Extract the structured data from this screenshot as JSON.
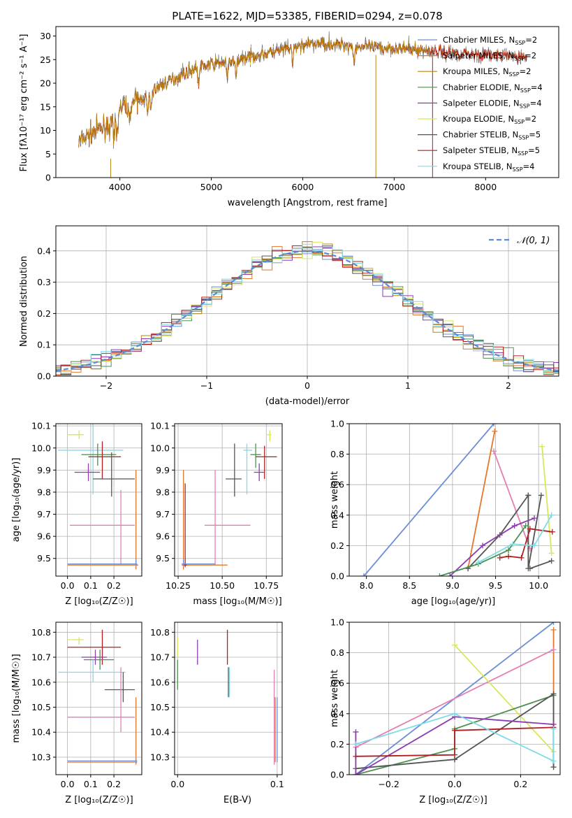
{
  "colors": {
    "chabrier_miles": "#6a8fd8",
    "salpeter_miles": "#e5772b",
    "kroupa_miles": "#b8860b",
    "chabrier_elodie": "#4e8f52",
    "salpeter_elodie": "#8e3ab0",
    "kroupa_elodie": "#d9e65a",
    "chabrier_stelib": "#555555",
    "salpeter_stelib": "#b02020",
    "kroupa_stelib": "#7fdbe6",
    "pink": "#e37fb5",
    "normal_line": "#5b8bd5"
  },
  "chart_data": [
    {
      "id": "spectrum",
      "type": "line",
      "title": "PLATE=1622, MJD=53385, FIBERID=0294, z=0.078",
      "xlabel": "wavelength [Angstrom, rest frame]",
      "ylabel": "Flux [fλ10⁻¹⁷ erg cm⁻² s⁻¹ A⁻¹]",
      "xlim": [
        3300,
        8800
      ],
      "ylim": [
        0,
        32
      ],
      "xticks": [
        "4000",
        "5000",
        "6000",
        "7000",
        "8000"
      ],
      "yticks": [
        "0",
        "5",
        "10",
        "15",
        "20",
        "25",
        "30"
      ],
      "grid": false,
      "legend_position": "right",
      "x_range": [
        3550,
        8450
      ],
      "continuum": {
        "x": [
          3550,
          3700,
          3800,
          3950,
          4000,
          4100,
          4200,
          4300,
          4400,
          4500,
          4600,
          4700,
          4800,
          4900,
          5000,
          5200,
          5500,
          5800,
          6000,
          6200,
          6500,
          6800,
          7000,
          7200,
          7400,
          7600,
          7800,
          8000,
          8200,
          8450
        ],
        "y": [
          7.5,
          9.5,
          10.5,
          11.5,
          14.5,
          15.5,
          16.5,
          17,
          19,
          20,
          21,
          22,
          23,
          23.5,
          24,
          24.5,
          26,
          27,
          28,
          28.5,
          28,
          27.5,
          27.5,
          27.2,
          26.8,
          26.5,
          26.3,
          26,
          25.8,
          25.5
        ]
      },
      "series": [
        {
          "name": "Chabrier MILES, N_SSP=2",
          "color_key": "chabrier_miles"
        },
        {
          "name": "Salpeter MILES, N_SSP=2",
          "color_key": "salpeter_miles"
        },
        {
          "name": "Kroupa MILES, N_SSP=2",
          "color_key": "kroupa_miles"
        },
        {
          "name": "Chabrier ELODIE, N_SSP=4",
          "color_key": "chabrier_elodie"
        },
        {
          "name": "Salpeter ELODIE, N_SSP=4",
          "color_key": "salpeter_elodie"
        },
        {
          "name": "Kroupa ELODIE, N_SSP=2",
          "color_key": "kroupa_elodie"
        },
        {
          "name": "Chabrier STELIB, N_SSP=5",
          "color_key": "chabrier_stelib"
        },
        {
          "name": "Salpeter STELIB, N_SSP=5",
          "color_key": "salpeter_stelib"
        },
        {
          "name": "Kroupa STELIB, N_SSP=4",
          "color_key": "kroupa_stelib"
        }
      ]
    },
    {
      "id": "residuals",
      "type": "histogram",
      "xlabel": "(data-model)/error",
      "ylabel": "Normed distribution",
      "xlim": [
        -2.5,
        2.5
      ],
      "ylim": [
        0,
        0.48
      ],
      "xticks": [
        "−2",
        "−1",
        "0",
        "1",
        "2"
      ],
      "yticks": [
        "0.0",
        "0.1",
        "0.2",
        "0.3",
        "0.4"
      ],
      "grid": true,
      "legend_position": "top-right",
      "legend": "𝒩(0, 1)",
      "bin_width": 0.1
    },
    {
      "id": "age_vs_Z",
      "type": "errorbar",
      "xlabel": "Z [log₁₀(Z/Z☉)]",
      "ylabel": "age  [log₁₀(age/yr)]",
      "xlim": [
        -0.05,
        0.32
      ],
      "ylim": [
        9.42,
        10.11
      ],
      "xticks": [
        "0.0",
        "0.1",
        "0.2"
      ],
      "yticks": [
        "9.5",
        "9.6",
        "9.7",
        "9.8",
        "9.9",
        "10.0",
        "10.1"
      ],
      "grid": true,
      "points": [
        {
          "color_key": "kroupa_elodie",
          "x": 0.05,
          "y": 10.06,
          "xerr": [
            0.05,
            0.02
          ],
          "yerr": [
            0.02,
            0.02
          ]
        },
        {
          "color_key": "kroupa_stelib",
          "x": 0.11,
          "y": 9.99,
          "xerr": [
            0.15,
            0.13
          ],
          "yerr": [
            0.2,
            0.15
          ]
        },
        {
          "color_key": "chabrier_elodie",
          "x": 0.13,
          "y": 9.97,
          "xerr": [
            0.07,
            0.08
          ],
          "yerr": [
            0.05,
            0.05
          ]
        },
        {
          "color_key": "salpeter_stelib",
          "x": 0.15,
          "y": 9.96,
          "xerr": [
            0.06,
            0.08
          ],
          "yerr": [
            0.1,
            0.07
          ]
        },
        {
          "color_key": "salpeter_elodie",
          "x": 0.09,
          "y": 9.89,
          "xerr": [
            0.06,
            0.05
          ],
          "yerr": [
            0.04,
            0.04
          ]
        },
        {
          "color_key": "chabrier_stelib",
          "x": 0.19,
          "y": 9.86,
          "xerr": [
            0.08,
            0.1
          ],
          "yerr": [
            0.08,
            0.12
          ]
        },
        {
          "color_key": "pink",
          "x": 0.23,
          "y": 9.65,
          "xerr": [
            0.22,
            0.06
          ],
          "yerr": [
            0.18,
            0.16
          ]
        },
        {
          "color_key": "salpeter_miles",
          "x": 0.295,
          "y": 9.47,
          "xerr": [
            0.295,
            0.01
          ],
          "yerr": [
            0.02,
            0.43
          ]
        },
        {
          "color_key": "chabrier_miles",
          "x": 0.295,
          "y": 9.475,
          "xerr": [
            0.295,
            0.005
          ],
          "yerr": [
            0.01,
            0.02
          ]
        }
      ]
    },
    {
      "id": "age_vs_mass",
      "type": "errorbar",
      "xlabel": "mass [log₁₀(M/M☉)]",
      "ylabel": "",
      "xlim": [
        10.23,
        10.84
      ],
      "ylim": [
        9.42,
        10.11
      ],
      "xticks": [
        "10.25",
        "10.50",
        "10.75"
      ],
      "yticks": [
        "9.5",
        "9.6",
        "9.7",
        "9.8",
        "9.9",
        "10.0",
        "10.1"
      ],
      "grid": true,
      "points": [
        {
          "color_key": "kroupa_elodie",
          "x": 10.77,
          "y": 10.06,
          "xerr": [
            0.02,
            0.01
          ],
          "yerr": [
            0.03,
            0.02
          ]
        },
        {
          "color_key": "kroupa_stelib",
          "x": 10.64,
          "y": 9.99,
          "xerr": [
            0.02,
            0.03
          ],
          "yerr": [
            0.2,
            0.03
          ]
        },
        {
          "color_key": "chabrier_elodie",
          "x": 10.69,
          "y": 9.97,
          "xerr": [
            0.03,
            0.03
          ],
          "yerr": [
            0.06,
            0.05
          ]
        },
        {
          "color_key": "salpeter_stelib",
          "x": 10.74,
          "y": 9.96,
          "xerr": [
            0.05,
            0.07
          ],
          "yerr": [
            0.1,
            0.05
          ]
        },
        {
          "color_key": "salpeter_elodie",
          "x": 10.71,
          "y": 9.89,
          "xerr": [
            0.03,
            0.03
          ],
          "yerr": [
            0.04,
            0.04
          ]
        },
        {
          "color_key": "chabrier_stelib",
          "x": 10.57,
          "y": 9.86,
          "xerr": [
            0.05,
            0.04
          ],
          "yerr": [
            0.08,
            0.16
          ]
        },
        {
          "color_key": "pink",
          "x": 10.46,
          "y": 9.65,
          "xerr": [
            0.06,
            0.2
          ],
          "yerr": [
            0.18,
            0.25
          ]
        },
        {
          "color_key": "salpeter_miles",
          "x": 10.28,
          "y": 9.47,
          "xerr": [
            0.01,
            0.25
          ],
          "yerr": [
            0.02,
            0.43
          ]
        },
        {
          "color_key": "salpeter_stelib",
          "x": 10.29,
          "y": 9.47,
          "xerr": [
            0.01,
            0.01
          ],
          "yerr": [
            0.01,
            0.37
          ]
        },
        {
          "color_key": "chabrier_miles",
          "x": 10.28,
          "y": 9.475,
          "xerr": [
            0.01,
            0.18
          ],
          "yerr": [
            0.01,
            0.02
          ]
        }
      ]
    },
    {
      "id": "weight_vs_age",
      "type": "line",
      "xlabel": "age  [log₁₀(age/yr)]",
      "ylabel": "mass weight",
      "xlim": [
        7.8,
        10.25
      ],
      "ylim": [
        0,
        1
      ],
      "xticks": [
        "8.0",
        "8.5",
        "9.0",
        "9.5",
        "10.0"
      ],
      "yticks": [
        "0.0",
        "0.2",
        "0.4",
        "0.6",
        "0.8",
        "1.0"
      ],
      "grid": true,
      "series": [
        {
          "color_key": "chabrier_miles",
          "x": [
            7.97,
            9.48
          ],
          "y": [
            0,
            1.0
          ]
        },
        {
          "color_key": "salpeter_miles",
          "x": [
            9.18,
            9.49
          ],
          "y": [
            0.05,
            0.95
          ]
        },
        {
          "color_key": "pink",
          "x": [
            9.48,
            9.9
          ],
          "y": [
            0.82,
            0.18
          ]
        },
        {
          "color_key": "kroupa_elodie",
          "x": [
            10.04,
            10.15
          ],
          "y": [
            0.85,
            0.15
          ]
        },
        {
          "color_key": "chabrier_stelib",
          "x": [
            9.18,
            9.55,
            9.88
          ],
          "y": [
            0.05,
            0.27,
            0.53
          ]
        },
        {
          "color_key": "chabrier_stelib",
          "x": [
            9.88,
            9.88,
            10.03
          ],
          "y": [
            0.53,
            0.05,
            0.53
          ]
        },
        {
          "color_key": "chabrier_stelib",
          "x": [
            9.9,
            10.15
          ],
          "y": [
            0.05,
            0.1
          ]
        },
        {
          "color_key": "salpeter_elodie",
          "x": [
            8.97,
            9.35,
            9.72,
            9.95
          ],
          "y": [
            0.0,
            0.2,
            0.33,
            0.38
          ]
        },
        {
          "color_key": "salpeter_stelib",
          "x": [
            9.55,
            9.65,
            9.8,
            9.9,
            10.16
          ],
          "y": [
            0.12,
            0.13,
            0.12,
            0.31,
            0.29
          ]
        },
        {
          "color_key": "chabrier_elodie",
          "x": [
            8.85,
            9.3,
            9.65,
            9.85
          ],
          "y": [
            0.0,
            0.08,
            0.17,
            0.33
          ]
        },
        {
          "color_key": "kroupa_stelib",
          "x": [
            9.3,
            9.7,
            9.95,
            10.15
          ],
          "y": [
            0.09,
            0.21,
            0.2,
            0.4
          ]
        }
      ]
    },
    {
      "id": "mass_vs_Z",
      "type": "errorbar",
      "xlabel": "Z [log₁₀(Z/Z☉)]",
      "ylabel": "mass [log₁₀(M/M☉)]",
      "xlim": [
        -0.05,
        0.32
      ],
      "ylim": [
        10.23,
        10.84
      ],
      "xticks": [
        "0.0",
        "0.1",
        "0.2"
      ],
      "yticks": [
        "10.3",
        "10.4",
        "10.5",
        "10.6",
        "10.7",
        "10.8"
      ],
      "grid": true,
      "points": [
        {
          "color_key": "kroupa_elodie",
          "x": 0.05,
          "y": 10.77,
          "xerr": [
            0.05,
            0.02
          ],
          "yerr": [
            0.02,
            0.01
          ]
        },
        {
          "color_key": "salpeter_stelib",
          "x": 0.15,
          "y": 10.74,
          "xerr": [
            0.15,
            0.08
          ],
          "yerr": [
            0.07,
            0.07
          ]
        },
        {
          "color_key": "salpeter_elodie",
          "x": 0.12,
          "y": 10.7,
          "xerr": [
            0.06,
            0.05
          ],
          "yerr": [
            0.03,
            0.03
          ]
        },
        {
          "color_key": "chabrier_elodie",
          "x": 0.14,
          "y": 10.69,
          "xerr": [
            0.07,
            0.06
          ],
          "yerr": [
            0.04,
            0.04
          ]
        },
        {
          "color_key": "kroupa_stelib",
          "x": 0.11,
          "y": 10.64,
          "xerr": [
            0.15,
            0.14
          ],
          "yerr": [
            0.04,
            0.05
          ]
        },
        {
          "color_key": "chabrier_stelib",
          "x": 0.24,
          "y": 10.57,
          "xerr": [
            0.08,
            0.05
          ],
          "yerr": [
            0.05,
            0.07
          ]
        },
        {
          "color_key": "pink",
          "x": 0.23,
          "y": 10.46,
          "xerr": [
            0.23,
            0.06
          ],
          "yerr": [
            0.06,
            0.2
          ]
        },
        {
          "color_key": "salpeter_miles",
          "x": 0.295,
          "y": 10.28,
          "xerr": [
            0.295,
            0.005
          ],
          "yerr": [
            0.01,
            0.26
          ]
        },
        {
          "color_key": "chabrier_miles",
          "x": 0.295,
          "y": 10.285,
          "xerr": [
            0.295,
            0.005
          ],
          "yerr": [
            0.01,
            0.01
          ]
        }
      ]
    },
    {
      "id": "mass_vs_ebv",
      "type": "errorbar",
      "xlabel": "E(B-V)",
      "ylabel": "",
      "xlim": [
        -0.003,
        0.105
      ],
      "ylim": [
        10.23,
        10.84
      ],
      "xticks": [
        "0.0",
        "0.1"
      ],
      "yticks": [
        "10.3",
        "10.4",
        "10.5",
        "10.6",
        "10.7",
        "10.8"
      ],
      "grid": true,
      "points": [
        {
          "color_key": "kroupa_elodie",
          "x": 0.0,
          "y": 10.74,
          "yerr": [
            0.04,
            0.04
          ]
        },
        {
          "color_key": "chabrier_elodie",
          "x": 0.0,
          "y": 10.63,
          "yerr": [
            0.06,
            0.06
          ]
        },
        {
          "color_key": "salpeter_elodie",
          "x": 0.02,
          "y": 10.72,
          "yerr": [
            0.05,
            0.05
          ]
        },
        {
          "color_key": "salpeter_stelib",
          "x": 0.05,
          "y": 10.74,
          "yerr": [
            0.07,
            0.07
          ]
        },
        {
          "color_key": "chabrier_stelib",
          "x": 0.051,
          "y": 10.6,
          "yerr": [
            0.06,
            0.06
          ]
        },
        {
          "color_key": "kroupa_stelib",
          "x": 0.052,
          "y": 10.6,
          "yerr": [
            0.06,
            0.06
          ]
        },
        {
          "color_key": "pink",
          "x": 0.097,
          "y": 10.46,
          "yerr": [
            0.19,
            0.19
          ]
        },
        {
          "color_key": "salpeter_miles",
          "x": 0.098,
          "y": 10.41,
          "yerr": [
            0.13,
            0.13
          ]
        },
        {
          "color_key": "chabrier_miles",
          "x": 0.1,
          "y": 10.41,
          "yerr": [
            0.13,
            0.13
          ]
        }
      ]
    },
    {
      "id": "weight_vs_Z",
      "type": "line",
      "xlabel": "Z [log₁₀(Z/Z☉)]",
      "ylabel": "mass weight",
      "xlim": [
        -0.32,
        0.32
      ],
      "ylim": [
        0,
        1
      ],
      "xticks": [
        "−0.2",
        "0.0",
        "0.2"
      ],
      "yticks": [
        "0.0",
        "0.2",
        "0.4",
        "0.6",
        "0.8",
        "1.0"
      ],
      "grid": true,
      "series": [
        {
          "color_key": "chabrier_miles",
          "x": [
            -0.3,
            0.3
          ],
          "y": [
            0.0,
            1.0
          ]
        },
        {
          "color_key": "salpeter_miles",
          "x": [
            0.3,
            0.3
          ],
          "y": [
            0.95,
            0.05
          ]
        },
        {
          "color_key": "pink",
          "x": [
            -0.3,
            0.3
          ],
          "y": [
            0.18,
            0.82
          ]
        },
        {
          "color_key": "kroupa_elodie",
          "x": [
            0.0,
            0.3
          ],
          "y": [
            0.85,
            0.15
          ]
        },
        {
          "color_key": "chabrier_elodie",
          "x": [
            -0.3,
            0.0,
            0.0,
            0.3
          ],
          "y": [
            0.0,
            0.17,
            0.3,
            0.52
          ]
        },
        {
          "color_key": "chabrier_stelib",
          "x": [
            -0.3,
            0.0,
            0.0,
            0.3,
            0.3
          ],
          "y": [
            0.04,
            0.1,
            0.1,
            0.53,
            0.05
          ]
        },
        {
          "color_key": "salpeter_elodie",
          "x": [
            -0.3,
            -0.3,
            0.0,
            0.3
          ],
          "y": [
            0.28,
            0.0,
            0.38,
            0.33
          ]
        },
        {
          "color_key": "salpeter_stelib",
          "x": [
            -0.3,
            0.0,
            0.0,
            0.3
          ],
          "y": [
            0.12,
            0.13,
            0.29,
            0.31
          ]
        },
        {
          "color_key": "kroupa_stelib",
          "x": [
            -0.3,
            0.0,
            0.3,
            0.3
          ],
          "y": [
            0.2,
            0.4,
            0.09,
            0.3
          ]
        }
      ]
    }
  ]
}
